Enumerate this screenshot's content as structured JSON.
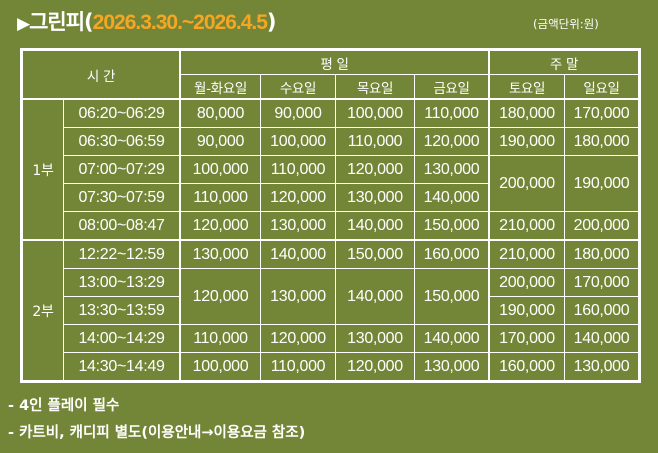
{
  "title": {
    "arrow": "▶",
    "name": "그린피",
    "open": "(",
    "period": "2026.3.30.~2026.4.5",
    "close": ")"
  },
  "unit_note": "(금액단위:원)",
  "table": {
    "header": {
      "time": "시 간",
      "weekday": "평 일",
      "weekend": "주 말",
      "days": [
        "월-화요일",
        "수요일",
        "목요일",
        "금요일",
        "토요일",
        "일요일"
      ]
    },
    "parts": [
      {
        "label": "1부",
        "rows": [
          {
            "time": "06:20~06:29",
            "prices": [
              "80,000",
              "90,000",
              "100,000",
              "110,000",
              "180,000",
              "170,000"
            ]
          },
          {
            "time": "06:30~06:59",
            "prices": [
              "90,000",
              "100,000",
              "110,000",
              "120,000",
              "190,000",
              "180,000"
            ]
          },
          {
            "time": "07:00~07:29",
            "prices": [
              "100,000",
              "110,000",
              "120,000",
              "130,000",
              "200,000",
              "190,000"
            ]
          },
          {
            "time": "07:30~07:59",
            "prices": [
              "110,000",
              "120,000",
              "130,000",
              "140,000"
            ]
          },
          {
            "time": "08:00~08:47",
            "prices": [
              "120,000",
              "130,000",
              "140,000",
              "150,000",
              "210,000",
              "200,000"
            ]
          }
        ]
      },
      {
        "label": "2부",
        "rows": [
          {
            "time": "12:22~12:59",
            "prices": [
              "130,000",
              "140,000",
              "150,000",
              "160,000",
              "210,000",
              "180,000"
            ]
          },
          {
            "time": "13:00~13:29",
            "prices": [
              "120,000",
              "130,000",
              "140,000",
              "150,000",
              "200,000",
              "170,000"
            ]
          },
          {
            "time": "13:30~13:59",
            "prices": [
              "190,000",
              "160,000"
            ]
          },
          {
            "time": "14:00~14:29",
            "prices": [
              "110,000",
              "120,000",
              "130,000",
              "140,000",
              "170,000",
              "140,000"
            ]
          },
          {
            "time": "14:30~14:49",
            "prices": [
              "100,000",
              "110,000",
              "120,000",
              "130,000",
              "160,000",
              "130,000"
            ]
          }
        ]
      }
    ]
  },
  "notes": [
    "-  4인 플레이 필수",
    "-  카트비, 캐디피 별도(이용안내→이용요금 참조)"
  ],
  "colors": {
    "background": "#738638",
    "accent": "#f5a623",
    "border": "#ffffff"
  }
}
